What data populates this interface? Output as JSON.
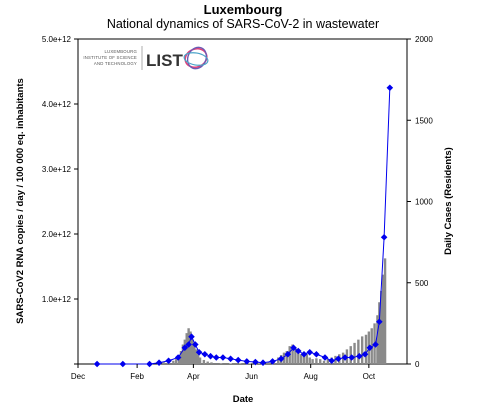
{
  "chart_data": {
    "type": "bar+line",
    "title": "Luxembourg",
    "subtitle": "National dynamics of SARS-CoV-2 in wastewater",
    "xlabel": "Date",
    "ylabel_left": "SARS-CoV2 RNA copies / day  / 100 000 eq. inhabitants",
    "ylabel_right": "Daily Cases (Residents)",
    "x_ticks": [
      "Dec",
      "Feb",
      "Apr",
      "Jun",
      "Aug",
      "Oct"
    ],
    "x_tick_days": [
      0,
      62,
      121,
      182,
      244,
      305
    ],
    "xlim_days": [
      0,
      345
    ],
    "y_left_ticks": [
      "",
      "1.0e+12",
      "2.0e+12",
      "3.0e+12",
      "4.0e+12",
      "5.0e+12"
    ],
    "ylim_left": [
      0,
      5000000000000.0
    ],
    "y_right_ticks": [
      "0",
      "500",
      "1000",
      "1500",
      "2000"
    ],
    "ylim_right": [
      0,
      2000
    ],
    "logo": {
      "small_lines": [
        "LUXEMBOURG",
        "INSTITUTE OF SCIENCE",
        "AND TECHNOLOGY"
      ],
      "brand": "LIST"
    },
    "wastewater_series": {
      "name": "",
      "color": "#0000ee",
      "points": [
        [
          20,
          0.0
        ],
        [
          47,
          0.0
        ],
        [
          75,
          0.0
        ],
        [
          85,
          20000000000.0
        ],
        [
          95,
          50000000000.0
        ],
        [
          105,
          100000000000.0
        ],
        [
          112,
          250000000000.0
        ],
        [
          116,
          300000000000.0
        ],
        [
          119,
          420000000000.0
        ],
        [
          123,
          300000000000.0
        ],
        [
          127,
          180000000000.0
        ],
        [
          133,
          150000000000.0
        ],
        [
          139,
          120000000000.0
        ],
        [
          145,
          100000000000.0
        ],
        [
          152,
          100000000000.0
        ],
        [
          160,
          80000000000.0
        ],
        [
          168,
          60000000000.0
        ],
        [
          177,
          40000000000.0
        ],
        [
          186,
          30000000000.0
        ],
        [
          194,
          20000000000.0
        ],
        [
          204,
          40000000000.0
        ],
        [
          213,
          80000000000.0
        ],
        [
          220,
          150000000000.0
        ],
        [
          226,
          250000000000.0
        ],
        [
          231,
          200000000000.0
        ],
        [
          237,
          150000000000.0
        ],
        [
          243,
          180000000000.0
        ],
        [
          250,
          150000000000.0
        ],
        [
          259,
          100000000000.0
        ],
        [
          266,
          50000000000.0
        ],
        [
          273,
          80000000000.0
        ],
        [
          280,
          100000000000.0
        ],
        [
          287,
          100000000000.0
        ],
        [
          295,
          120000000000.0
        ],
        [
          301,
          150000000000.0
        ],
        [
          306,
          250000000000.0
        ],
        [
          312,
          300000000000.0
        ],
        [
          316,
          650000000000.0
        ],
        [
          321,
          1950000000000.0
        ],
        [
          327,
          4250000000000.0
        ]
      ]
    },
    "daily_cases": {
      "name": "",
      "color": "#8a8a8a",
      "bars": [
        [
          85,
          5
        ],
        [
          90,
          10
        ],
        [
          95,
          15
        ],
        [
          100,
          20
        ],
        [
          103,
          30
        ],
        [
          106,
          55
        ],
        [
          108,
          80
        ],
        [
          110,
          120
        ],
        [
          112,
          150
        ],
        [
          114,
          190
        ],
        [
          116,
          220
        ],
        [
          118,
          200
        ],
        [
          120,
          150
        ],
        [
          122,
          120
        ],
        [
          124,
          90
        ],
        [
          126,
          60
        ],
        [
          128,
          40
        ],
        [
          132,
          25
        ],
        [
          136,
          15
        ],
        [
          140,
          10
        ],
        [
          150,
          5
        ],
        [
          160,
          3
        ],
        [
          170,
          2
        ],
        [
          180,
          3
        ],
        [
          190,
          5
        ],
        [
          200,
          10
        ],
        [
          205,
          20
        ],
        [
          210,
          40
        ],
        [
          213,
          55
        ],
        [
          216,
          70
        ],
        [
          219,
          80
        ],
        [
          222,
          110
        ],
        [
          225,
          120
        ],
        [
          228,
          100
        ],
        [
          231,
          90
        ],
        [
          234,
          60
        ],
        [
          237,
          50
        ],
        [
          240,
          60
        ],
        [
          243,
          40
        ],
        [
          246,
          30
        ],
        [
          250,
          35
        ],
        [
          254,
          30
        ],
        [
          258,
          20
        ],
        [
          262,
          30
        ],
        [
          266,
          40
        ],
        [
          270,
          50
        ],
        [
          274,
          60
        ],
        [
          278,
          70
        ],
        [
          282,
          90
        ],
        [
          286,
          110
        ],
        [
          290,
          130
        ],
        [
          294,
          150
        ],
        [
          298,
          170
        ],
        [
          302,
          180
        ],
        [
          305,
          200
        ],
        [
          308,
          220
        ],
        [
          311,
          250
        ],
        [
          314,
          300
        ],
        [
          316,
          380
        ],
        [
          318,
          450
        ],
        [
          320,
          550
        ],
        [
          322,
          650
        ]
      ]
    }
  }
}
